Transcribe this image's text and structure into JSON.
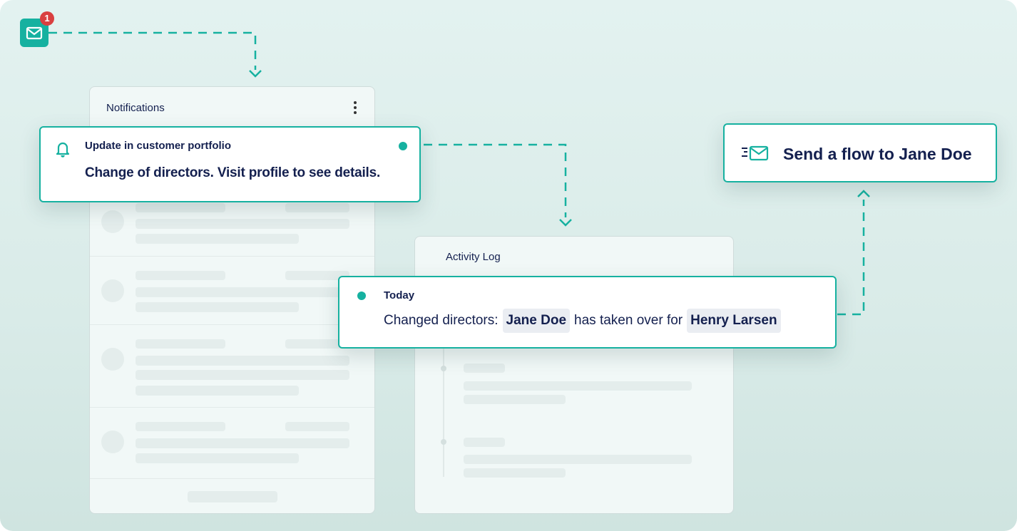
{
  "mail_button": {
    "icon": "mail-icon",
    "badge": "1"
  },
  "notifications_panel": {
    "title": "Notifications",
    "menu_icon": "more-vertical-icon",
    "card": {
      "icon": "bell-icon",
      "title": "Update in customer portfolio",
      "message": "Change of directors. Visit profile to see details.",
      "unread": true
    }
  },
  "activity_panel": {
    "title": "Activity Log",
    "card": {
      "date": "Today",
      "prefix": "Changed directors:",
      "new_director": "Jane Doe",
      "middle": "has taken over for",
      "old_director": "Henry Larsen"
    }
  },
  "send_flow": {
    "icon": "send-mail-icon",
    "label": "Send a flow to Jane Doe"
  },
  "colors": {
    "accent": "#16b1a0",
    "navy": "#14204f",
    "badge": "#d94040"
  }
}
